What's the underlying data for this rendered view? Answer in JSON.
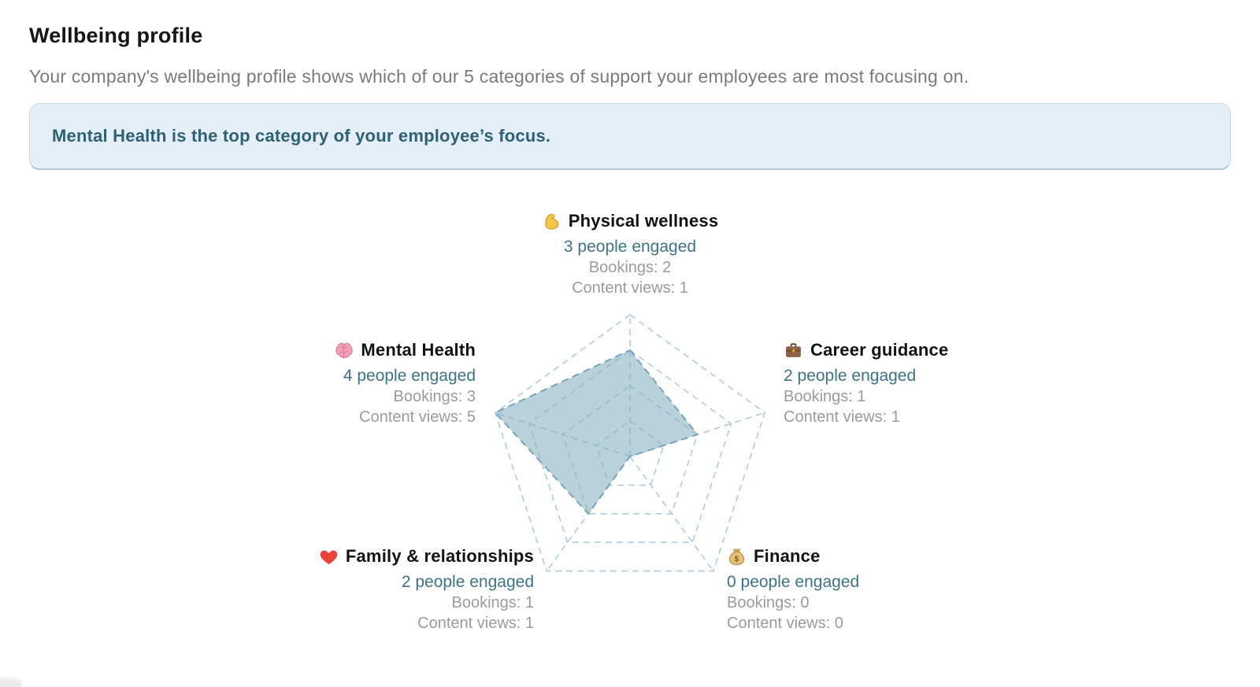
{
  "page": {
    "title": "Wellbeing profile",
    "subtitle": "Your company's wellbeing profile shows which of our 5 categories of support your employees are most focusing on.",
    "banner_text": "Mental Health is the top category of your employee’s focus."
  },
  "chart_data": {
    "type": "radar",
    "title": "Wellbeing profile radar",
    "categories_clockwise_from_top": [
      "Physical wellness",
      "Career guidance",
      "Finance",
      "Family & relationships",
      "Mental Health"
    ],
    "series": [
      {
        "name": "People engaged",
        "values": [
          3,
          2,
          0,
          2,
          4
        ],
        "plotted": true
      },
      {
        "name": "Bookings",
        "values": [
          2,
          1,
          0,
          1,
          3
        ],
        "plotted": false
      },
      {
        "name": "Content views",
        "values": [
          1,
          1,
          0,
          1,
          5
        ],
        "plotted": false
      }
    ],
    "axis_max": 4,
    "grid_rings": 4,
    "grid_style": "dashed pentagon rings with radial spokes",
    "legend_position": "none",
    "colors": {
      "grid_line": "#afccdf",
      "data_fill": "rgba(136,178,193,0.6)",
      "data_stroke": "#76a3bc",
      "engaged_text": "#3e7386",
      "muted_text": "#9b9b9b",
      "banner_bg": "#e4eef6",
      "banner_text": "#2e6173"
    },
    "labels": [
      {
        "icon": "muscle-icon",
        "emoji": "💪",
        "title": "Physical wellness",
        "engaged": "3 people engaged",
        "bookings": "Bookings: 2",
        "views": "Content views: 1"
      },
      {
        "icon": "briefcase-icon",
        "emoji": "💼",
        "title": "Career guidance",
        "engaged": "2 people engaged",
        "bookings": "Bookings: 1",
        "views": "Content views: 1"
      },
      {
        "icon": "moneybag-icon",
        "emoji": "💰",
        "title": "Finance",
        "engaged": "0 people engaged",
        "bookings": "Bookings: 0",
        "views": "Content views: 0"
      },
      {
        "icon": "heart-icon",
        "emoji": "❤️",
        "title": "Family & relationships",
        "engaged": "2 people engaged",
        "bookings": "Bookings: 1",
        "views": "Content views: 1"
      },
      {
        "icon": "brain-icon",
        "emoji": "🧠",
        "title": "Mental Health",
        "engaged": "4 people engaged",
        "bookings": "Bookings: 3",
        "views": "Content views: 5"
      }
    ]
  }
}
